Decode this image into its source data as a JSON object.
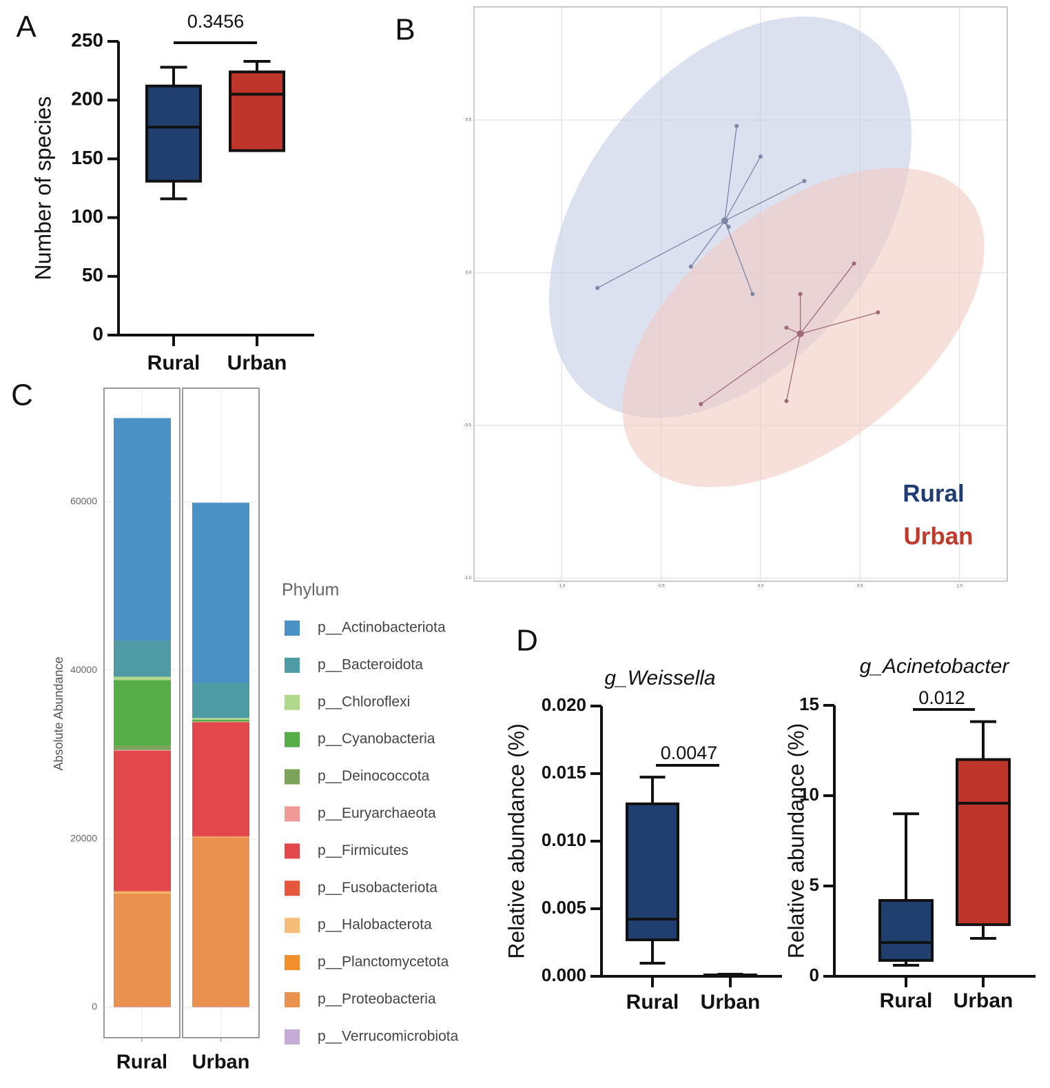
{
  "chart_data": [
    {
      "type": "box",
      "panel": "A",
      "ylabel": "Number of species",
      "annotation": "0.3456",
      "categories": [
        "Rural",
        "Urban"
      ],
      "colors": [
        "#203f6e",
        "#c0352b"
      ],
      "min": [
        116,
        157
      ],
      "q1": [
        131,
        157
      ],
      "median": [
        177,
        205
      ],
      "q3": [
        212,
        224
      ],
      "max": [
        228,
        233
      ],
      "ylim": [
        0,
        250
      ],
      "yticks": [
        0,
        50,
        100,
        150,
        200,
        250
      ]
    },
    {
      "type": "scatter",
      "panel": "B",
      "series": [
        {
          "name": "Rural",
          "color": "#1f3c73",
          "point_color": "#7d86a6",
          "ellipse_color": "#c3cde4",
          "x": [
            -0.12,
            0.0,
            0.22,
            -0.16,
            -0.35,
            -0.82,
            -0.04
          ],
          "y": [
            0.48,
            0.38,
            0.3,
            0.15,
            0.02,
            -0.05,
            -0.07
          ],
          "centroid_x": -0.18,
          "centroid_y": 0.17
        },
        {
          "name": "Urban",
          "color": "#c0392b",
          "point_color": "#9e6a74",
          "ellipse_color": "#f2c9c2",
          "x": [
            0.47,
            0.59,
            0.2,
            0.13,
            -0.3,
            0.13
          ],
          "y": [
            0.03,
            -0.13,
            -0.07,
            -0.18,
            -0.43,
            -0.42
          ],
          "centroid_x": 0.2,
          "centroid_y": -0.2
        }
      ],
      "xlim": [
        -1.44,
        1.24
      ],
      "ylim": [
        -1.01,
        0.87
      ],
      "xticks": [
        {
          "value": -1,
          "label": "-1.0"
        },
        -0.5,
        {
          "value": 0,
          "label": "0.0"
        },
        0.5,
        {
          "value": 1,
          "label": "1.0"
        }
      ],
      "yticks": [
        {
          "value": -1,
          "label": "-1.0"
        },
        -0.5,
        {
          "value": 0,
          "label": "0.0"
        },
        0.5
      ],
      "grid": true
    },
    {
      "type": "stacked_bar",
      "panel": "C",
      "ylabel": "Absolute Abundance",
      "legend_title": "Phylum",
      "categories": [
        "Rural",
        "Urban"
      ],
      "series": [
        {
          "name": "p__Actinobacteriota",
          "color": "#4a91c6",
          "values": [
            26400,
            21350
          ]
        },
        {
          "name": "p__Bacteroidota",
          "color": "#4e9aa5",
          "values": [
            4300,
            4200
          ]
        },
        {
          "name": "p__Chloroflexi",
          "color": "#b0d98c",
          "values": [
            400,
            200
          ]
        },
        {
          "name": "p__Cyanobacteria",
          "color": "#56ad47",
          "values": [
            7800,
            200
          ]
        },
        {
          "name": "p__Deinococcota",
          "color": "#7da35a",
          "values": [
            500,
            50
          ]
        },
        {
          "name": "p__Euryarchaeota",
          "color": "#f09a98",
          "values": [
            100,
            50
          ]
        },
        {
          "name": "p__Firmicutes",
          "color": "#e2474b",
          "values": [
            16600,
            13500
          ]
        },
        {
          "name": "p__Fusobacteriota",
          "color": "#e6553c",
          "values": [
            100,
            100
          ]
        },
        {
          "name": "p__Halobacterota",
          "color": "#f6bd7a",
          "values": [
            200,
            50
          ]
        },
        {
          "name": "p__Planctomycetota",
          "color": "#f28e2b",
          "values": [
            100,
            50
          ]
        },
        {
          "name": "p__Proteobacteria",
          "color": "#ea9150",
          "values": [
            13400,
            20100
          ]
        },
        {
          "name": "p__Verrucomicrobiota",
          "color": "#c4acd6",
          "values": [
            50,
            50
          ]
        }
      ],
      "ylim": [
        -3600,
        73500
      ],
      "yticks": [
        0,
        20000,
        40000,
        60000
      ]
    },
    {
      "type": "box",
      "panel": "D",
      "title": "g_Weissella",
      "ylabel": "Relative abundance (%)",
      "annotation": "0.0047",
      "categories": [
        "Rural",
        "Urban"
      ],
      "colors": [
        "#203f6e",
        "#c0352b"
      ],
      "min": [
        0.00097,
        0
      ],
      "q1": [
        0.0027,
        5e-05
      ],
      "median": [
        0.00423,
        0.0001
      ],
      "q3": [
        0.01276,
        0.0001
      ],
      "max": [
        0.01474,
        0.00015
      ],
      "ylim": [
        0,
        0.02
      ],
      "yticks": [
        {
          "value": 0,
          "label": "0.000"
        },
        0.005,
        {
          "value": 0.01,
          "label": "0.010"
        },
        0.015,
        {
          "value": 0.02,
          "label": "0.020"
        }
      ]
    },
    {
      "type": "box",
      "title": "g_Acinetobacter",
      "ylabel": "Relative abundance (%)",
      "annotation": "0.012",
      "categories": [
        "Rural",
        "Urban"
      ],
      "colors": [
        "#203f6e",
        "#c0352b"
      ],
      "min": [
        0.61,
        2.1
      ],
      "q1": [
        0.88,
        2.86
      ],
      "median": [
        1.87,
        9.58
      ],
      "q3": [
        4.2,
        12.0
      ],
      "max": [
        9.0,
        14.1
      ],
      "ylim": [
        0,
        15
      ],
      "yticks": [
        0,
        5,
        10,
        15
      ]
    }
  ]
}
